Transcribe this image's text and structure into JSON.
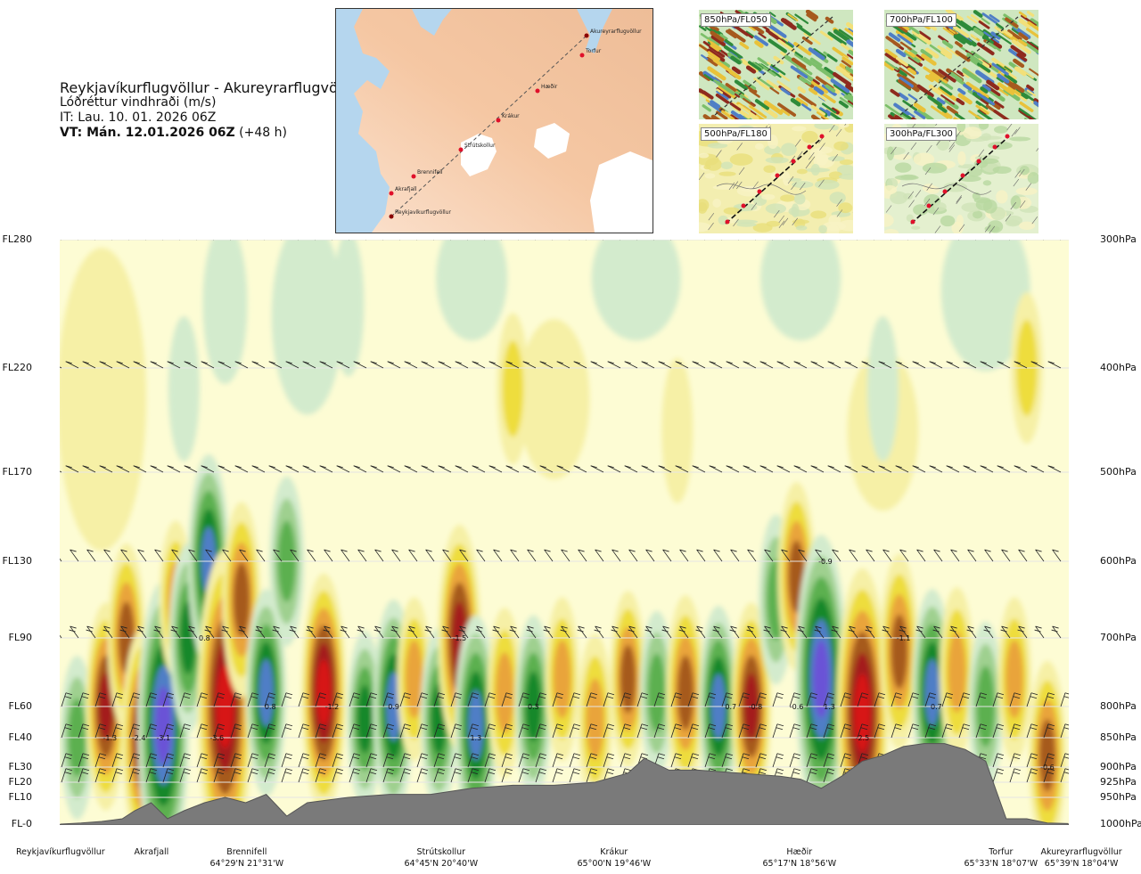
{
  "header": {
    "route": "Reykjavíkurflugvöllur - Akureyrarflugvöllur",
    "variable": "Lóðréttur vindhraði (m/s)",
    "issue_time": "IT: Lau. 10. 01. 2026 06Z",
    "valid_time": "VT: Mán. 12.01.2026 06Z",
    "lead": "(+48 h)"
  },
  "map": {
    "stations": [
      "Akureyrarflugvöllur",
      "Torfur",
      "Hæðir",
      "Krákur",
      "Strútskollur",
      "Brennifell",
      "Akrafjall",
      "Reykjavíkurflugvöllur"
    ]
  },
  "insets": [
    {
      "label": "850hPa/FL050"
    },
    {
      "label": "700hPa/FL100"
    },
    {
      "label": "500hPa/FL180"
    },
    {
      "label": "300hPa/FL300"
    }
  ],
  "colors": {
    "strong_down": "#6a52d6",
    "down_blue": "#4f7ec6",
    "down_dkgreen": "#17882b",
    "down_green": "#5bb050",
    "down_ltgreen": "#9fd08f",
    "down_pale": "#d3ebcd",
    "neutral": "#fdfcd4",
    "up_pale": "#f6f0a6",
    "up_yellow": "#eedd3c",
    "up_orange": "#e9a43a",
    "up_brown": "#a65a1e",
    "up_red": "#a41e1e",
    "up_bright": "#d71818",
    "terrain": "#7a7a7a"
  },
  "chart_data": {
    "type": "heatmap",
    "title": "Lóðréttur vindhraði (m/s)",
    "x_stations": [
      {
        "name": "Reykjavíkurflugvöllur",
        "coord": "",
        "km": 0
      },
      {
        "name": "Akrafjall",
        "coord": "",
        "km": 23
      },
      {
        "name": "Brennifell",
        "coord": "64°29'N 21°31'W",
        "km": 47
      },
      {
        "name": "Strútskollur",
        "coord": "64°45'N 20°40'W",
        "km": 95
      },
      {
        "name": "Krákur",
        "coord": "65°00'N 19°46'W",
        "km": 142
      },
      {
        "name": "Hæðir",
        "coord": "65°17'N 18°56'W",
        "km": 188
      },
      {
        "name": "Torfur",
        "coord": "65°33'N 18°07'W",
        "km": 233
      },
      {
        "name": "Akureyrarflugvöllur",
        "coord": "65°39'N 18°04'W",
        "km": 245
      }
    ],
    "y_left_flight_levels": [
      "FL280",
      "FL220",
      "FL170",
      "FL130",
      "FL90",
      "FL60",
      "FL40",
      "FL30",
      "FL20",
      "FL10",
      "FL-0"
    ],
    "y_right_pressure": [
      "300hPa",
      "400hPa",
      "500hPa",
      "600hPa",
      "700hPa",
      "800hPa",
      "850hPa",
      "900hPa",
      "925hPa",
      "950hPa",
      "1000hPa"
    ],
    "levels_hpa": [
      300,
      400,
      500,
      600,
      700,
      800,
      850,
      900,
      925,
      950,
      1000
    ],
    "contour_scale": [
      {
        "value": -1.5,
        "color": "#6a52d6"
      },
      {
        "value": -1.0,
        "color": "#4f7ec6"
      },
      {
        "value": -0.6,
        "color": "#17882b"
      },
      {
        "value": -0.3,
        "color": "#5bb050"
      },
      {
        "value": -0.15,
        "color": "#9fd08f"
      },
      {
        "value": -0.05,
        "color": "#d3ebcd"
      },
      {
        "value": 0,
        "color": "#fdfcd4"
      },
      {
        "value": 0.05,
        "color": "#f6f0a6"
      },
      {
        "value": 0.15,
        "color": "#eedd3c"
      },
      {
        "value": 0.3,
        "color": "#e9a43a"
      },
      {
        "value": 0.6,
        "color": "#a65a1e"
      },
      {
        "value": 1.0,
        "color": "#a41e1e"
      },
      {
        "value": 1.5,
        "color": "#d71818"
      }
    ],
    "annotations": [
      {
        "text": "-1.3",
        "km": 12,
        "hpa": 850
      },
      {
        "text": "-2.4",
        "km": 19,
        "hpa": 850
      },
      {
        "text": "-3.1",
        "km": 25,
        "hpa": 850
      },
      {
        "text": "0.8",
        "km": 35,
        "hpa": 700
      },
      {
        "text": "-3.6",
        "km": 38,
        "hpa": 850
      },
      {
        "text": "0.8",
        "km": 51,
        "hpa": 800
      },
      {
        "text": "-1.2",
        "km": 66,
        "hpa": 800
      },
      {
        "text": "0.9",
        "km": 81,
        "hpa": 800
      },
      {
        "text": "1.3",
        "km": 101,
        "hpa": 850
      },
      {
        "text": "-1.5",
        "km": 97,
        "hpa": 700
      },
      {
        "text": "0.3",
        "km": 115,
        "hpa": 800
      },
      {
        "text": "0.7",
        "km": 163,
        "hpa": 800
      },
      {
        "text": "-0.8",
        "km": 169,
        "hpa": 800
      },
      {
        "text": "-0.6",
        "km": 179,
        "hpa": 800
      },
      {
        "text": "1.3",
        "km": 187,
        "hpa": 800
      },
      {
        "text": "-0.9",
        "km": 186,
        "hpa": 600
      },
      {
        "text": "-2.5",
        "km": 195,
        "hpa": 850
      },
      {
        "text": "-1.1",
        "km": 205,
        "hpa": 700
      },
      {
        "text": "0.7",
        "km": 213,
        "hpa": 800
      },
      {
        "text": "-0.6",
        "km": 240,
        "hpa": 900
      }
    ],
    "cells": [
      {
        "km": 4,
        "hpa": 850,
        "w": -0.4
      },
      {
        "km": 11,
        "hpa": 800,
        "w": 1.1
      },
      {
        "km": 16,
        "hpa": 700,
        "w": 0.8
      },
      {
        "km": 20,
        "hpa": 850,
        "w": 1.3
      },
      {
        "km": 25,
        "hpa": 830,
        "w": -2.4
      },
      {
        "km": 28,
        "hpa": 650,
        "w": 0.3
      },
      {
        "km": 31,
        "hpa": 700,
        "w": -0.8
      },
      {
        "km": 36,
        "hpa": 600,
        "w": -1.2
      },
      {
        "km": 40,
        "hpa": 800,
        "w": 2.8
      },
      {
        "km": 44,
        "hpa": 650,
        "w": 0.9
      },
      {
        "km": 50,
        "hpa": 780,
        "w": -1.1
      },
      {
        "km": 55,
        "hpa": 600,
        "w": -0.5
      },
      {
        "km": 64,
        "hpa": 780,
        "w": 1.6
      },
      {
        "km": 74,
        "hpa": 820,
        "w": -0.6
      },
      {
        "km": 81,
        "hpa": 800,
        "w": -1.2
      },
      {
        "km": 86,
        "hpa": 760,
        "w": 0.4
      },
      {
        "km": 92,
        "hpa": 820,
        "w": -0.7
      },
      {
        "km": 97,
        "hpa": 700,
        "w": 1.4
      },
      {
        "km": 101,
        "hpa": 830,
        "w": -1.3
      },
      {
        "km": 108,
        "hpa": 780,
        "w": 0.5
      },
      {
        "km": 115,
        "hpa": 800,
        "w": -0.7
      },
      {
        "km": 122,
        "hpa": 760,
        "w": 0.4
      },
      {
        "km": 130,
        "hpa": 820,
        "w": 0.5
      },
      {
        "km": 138,
        "hpa": 760,
        "w": 0.6
      },
      {
        "km": 145,
        "hpa": 780,
        "w": -0.4
      },
      {
        "km": 152,
        "hpa": 780,
        "w": 0.9
      },
      {
        "km": 160,
        "hpa": 800,
        "w": -1.0
      },
      {
        "km": 168,
        "hpa": 800,
        "w": 1.1
      },
      {
        "km": 174,
        "hpa": 650,
        "w": -0.5
      },
      {
        "km": 179,
        "hpa": 620,
        "w": 0.8
      },
      {
        "km": 185,
        "hpa": 760,
        "w": -2.4
      },
      {
        "km": 195,
        "hpa": 810,
        "w": 2.4
      },
      {
        "km": 204,
        "hpa": 720,
        "w": 0.9
      },
      {
        "km": 212,
        "hpa": 780,
        "w": -1.1
      },
      {
        "km": 218,
        "hpa": 750,
        "w": 0.5
      },
      {
        "km": 225,
        "hpa": 800,
        "w": -0.5
      },
      {
        "km": 232,
        "hpa": 760,
        "w": 0.4
      },
      {
        "km": 240,
        "hpa": 880,
        "w": 0.8
      },
      {
        "km": 30,
        "hpa": 420,
        "w": -0.1
      },
      {
        "km": 70,
        "hpa": 350,
        "w": -0.1
      },
      {
        "km": 110,
        "hpa": 420,
        "w": 0.2
      },
      {
        "km": 150,
        "hpa": 460,
        "w": 0.1
      },
      {
        "km": 200,
        "hpa": 420,
        "w": -0.1
      },
      {
        "km": 235,
        "hpa": 400,
        "w": 0.2
      }
    ],
    "terrain": {
      "km": [
        0,
        5,
        10,
        15,
        18,
        22,
        26,
        30,
        35,
        40,
        45,
        50,
        55,
        60,
        70,
        80,
        90,
        100,
        110,
        120,
        130,
        138,
        142,
        148,
        155,
        165,
        175,
        180,
        185,
        190,
        195,
        200,
        205,
        210,
        215,
        220,
        225,
        230,
        235,
        240,
        245
      ],
      "hpa": [
        1000,
        998,
        995,
        990,
        975,
        960,
        990,
        975,
        960,
        950,
        960,
        945,
        985,
        960,
        950,
        945,
        945,
        935,
        930,
        930,
        925,
        910,
        885,
        905,
        905,
        910,
        915,
        920,
        935,
        915,
        890,
        880,
        865,
        860,
        860,
        870,
        890,
        990,
        990,
        998,
        999
      ]
    }
  }
}
